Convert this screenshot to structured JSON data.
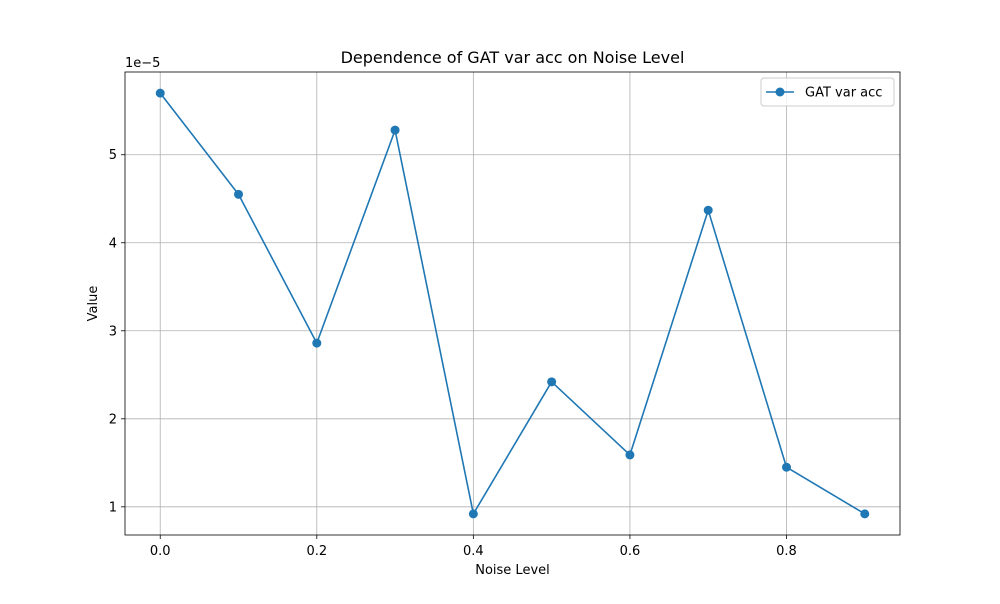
{
  "chart_data": {
    "type": "line",
    "title": "Dependence of GAT var acc on Noise Level",
    "xlabel": "Noise Level",
    "ylabel": "Value",
    "y_offset_label": "1e−5",
    "x": [
      0.0,
      0.1,
      0.2,
      0.3,
      0.4,
      0.5,
      0.6,
      0.7,
      0.8,
      0.9
    ],
    "series": [
      {
        "name": "GAT var acc",
        "color": "#1f77b4",
        "marker": "circle",
        "values": [
          5.7e-05,
          4.55e-05,
          2.86e-05,
          5.28e-05,
          9.2e-06,
          2.42e-05,
          1.59e-05,
          4.37e-05,
          1.45e-05,
          9.2e-06
        ]
      }
    ],
    "xlim": [
      -0.045,
      0.945
    ],
    "ylim": [
      6.8e-06,
      5.94e-05
    ],
    "x_ticks": [
      0.0,
      0.2,
      0.4,
      0.6,
      0.8
    ],
    "x_tick_labels": [
      "0.0",
      "0.2",
      "0.4",
      "0.6",
      "0.8"
    ],
    "y_ticks": [
      1e-05,
      2e-05,
      3e-05,
      4e-05,
      5e-05
    ],
    "y_tick_labels": [
      "1",
      "2",
      "3",
      "4",
      "5"
    ],
    "grid": true,
    "legend_position": "top-right"
  }
}
